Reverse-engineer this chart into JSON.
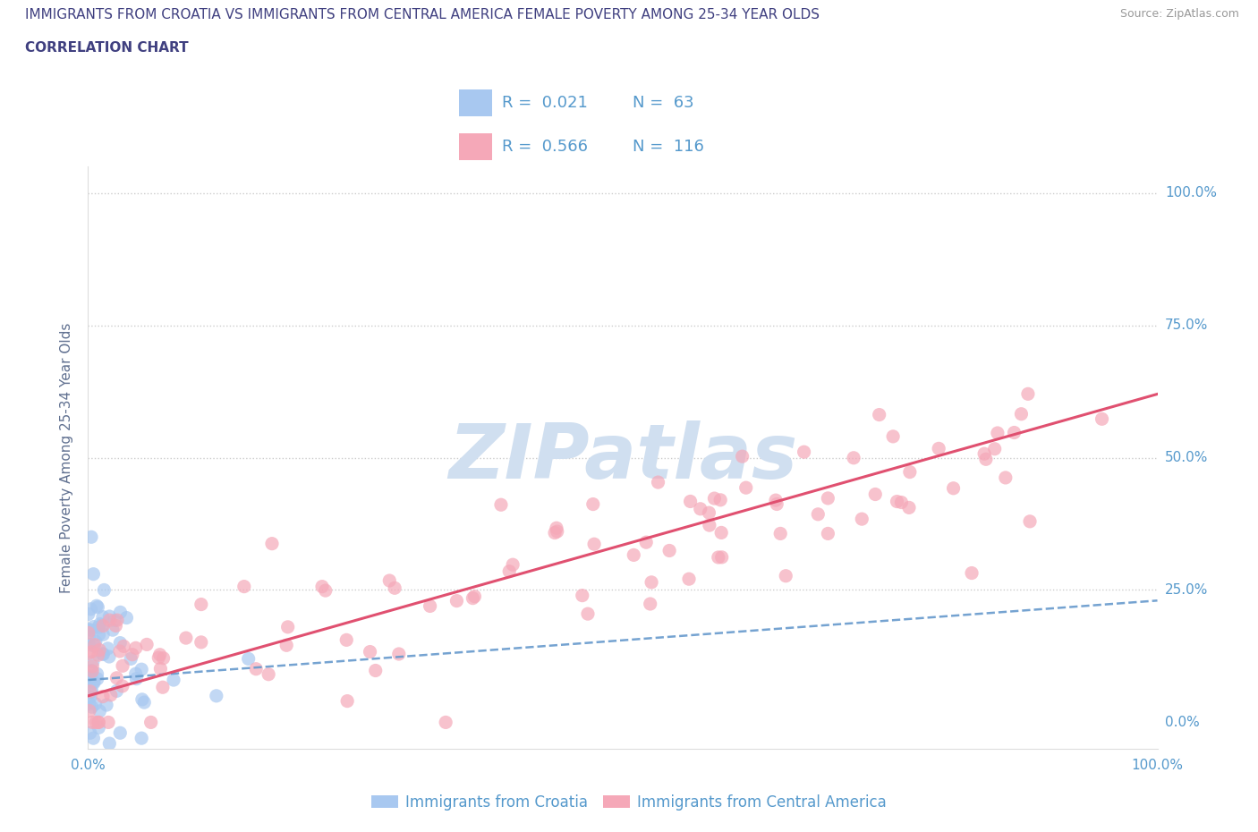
{
  "title_line1": "IMMIGRANTS FROM CROATIA VS IMMIGRANTS FROM CENTRAL AMERICA FEMALE POVERTY AMONG 25-34 YEAR OLDS",
  "title_line2": "CORRELATION CHART",
  "source_text": "Source: ZipAtlas.com",
  "ylabel": "Female Poverty Among 25-34 Year Olds",
  "legend_croatia": "Immigrants from Croatia",
  "legend_central_america": "Immigrants from Central America",
  "R_croatia": "0.021",
  "N_croatia": "63",
  "R_central_america": "0.566",
  "N_central_america": "116",
  "color_croatia": "#a8c8f0",
  "color_central_america": "#f5a8b8",
  "color_line_croatia": "#6699cc",
  "color_line_central_america": "#e05070",
  "color_title": "#404080",
  "color_source": "#999999",
  "color_ylabel": "#607090",
  "color_tick_right": "#5599cc",
  "color_legend_text": "#5599cc",
  "watermark_color": "#d0dff0",
  "background_color": "#ffffff",
  "watermark": "ZIPatlas"
}
